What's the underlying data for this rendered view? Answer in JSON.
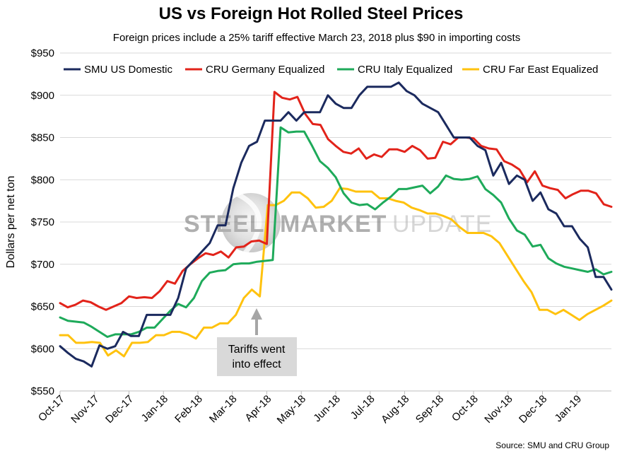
{
  "chart_data": {
    "type": "line",
    "title": "US vs Foreign Hot Rolled Steel Prices",
    "subtitle": "Foreign prices include a 25% tariff effective March 23, 2018 plus $90 in importing costs",
    "ylabel": "Dollars per net ton",
    "xlabel": "",
    "ylim": [
      550,
      950
    ],
    "yticks": [
      550,
      600,
      650,
      700,
      750,
      800,
      850,
      900,
      950
    ],
    "ytick_labels": [
      "$550",
      "$600",
      "$650",
      "$700",
      "$750",
      "$800",
      "$850",
      "$900",
      "$950"
    ],
    "grid": "horizontal",
    "legend_position": "top",
    "x_start": "Oct-17",
    "x_end": "Feb-19",
    "x_month_labels": [
      "Oct-17",
      "Nov-17",
      "Dec-17",
      "Jan-18",
      "Feb-18",
      "Mar-18",
      "Apr-18",
      "May-18",
      "Jun-18",
      "Jul-18",
      "Aug-18",
      "Sep-18",
      "Oct-18",
      "Nov-18",
      "Dec-18",
      "Jan-19"
    ],
    "series": [
      {
        "name": "SMU US Domestic",
        "color": "#1b2a5e",
        "values": [
          603,
          595,
          588,
          585,
          579,
          604,
          600,
          603,
          620,
          615,
          615,
          640,
          640,
          640,
          640,
          660,
          695,
          705,
          715,
          725,
          746,
          746,
          790,
          820,
          840,
          845,
          870,
          870,
          870,
          880,
          870,
          880,
          880,
          880,
          900,
          890,
          885,
          885,
          900,
          910,
          910,
          910,
          910,
          915,
          905,
          900,
          890,
          885,
          880,
          865,
          850,
          850,
          850,
          840,
          835,
          805,
          820,
          795,
          805,
          800,
          775,
          785,
          765,
          760,
          745,
          745,
          730,
          720,
          685,
          685,
          670
        ]
      },
      {
        "name": "CRU Germany Equalized",
        "color": "#e2231a",
        "values": [
          654,
          649,
          652,
          657,
          655,
          650,
          646,
          650,
          654,
          662,
          660,
          661,
          660,
          668,
          680,
          677,
          692,
          700,
          707,
          713,
          711,
          715,
          708,
          720,
          721,
          727,
          728,
          724,
          904,
          897,
          895,
          898,
          878,
          866,
          865,
          848,
          840,
          833,
          831,
          837,
          825,
          830,
          827,
          836,
          836,
          833,
          840,
          835,
          825,
          826,
          845,
          842,
          850,
          850,
          849,
          840,
          837,
          836,
          822,
          818,
          812,
          797,
          810,
          793,
          790,
          788,
          778,
          783,
          787,
          787,
          784,
          771,
          768
        ]
      },
      {
        "name": "CRU Italy Equalized",
        "color": "#1eaa5a",
        "values": [
          637,
          633,
          632,
          631,
          626,
          620,
          614,
          617,
          617,
          617,
          620,
          625,
          625,
          635,
          645,
          653,
          649,
          660,
          680,
          690,
          692,
          693,
          700,
          701,
          701,
          703,
          704,
          705,
          862,
          856,
          857,
          857,
          840,
          822,
          814,
          803,
          784,
          773,
          770,
          771,
          765,
          773,
          780,
          789,
          789,
          791,
          793,
          784,
          792,
          805,
          801,
          800,
          801,
          804,
          789,
          782,
          773,
          754,
          740,
          735,
          721,
          723,
          707,
          701,
          697,
          695,
          693,
          691,
          694,
          688,
          691
        ]
      },
      {
        "name": "CRU Far East Equalized",
        "color": "#ffc20e",
        "values": [
          616,
          616,
          607,
          607,
          608,
          607,
          592,
          598,
          591,
          607,
          607,
          608,
          616,
          616,
          620,
          620,
          617,
          612,
          625,
          625,
          630,
          630,
          640,
          660,
          670,
          662,
          770,
          770,
          775,
          785,
          785,
          778,
          767,
          768,
          775,
          790,
          789,
          786,
          786,
          786,
          778,
          778,
          775,
          773,
          767,
          764,
          760,
          760,
          757,
          753,
          744,
          737,
          737,
          737,
          733,
          725,
          710,
          695,
          680,
          667,
          646,
          646,
          641,
          646,
          640,
          634,
          641,
          646,
          651,
          657
        ]
      }
    ],
    "annotation": {
      "text_line1": "Tariffs went",
      "text_line2": "into effect",
      "date": "Mar 23, 2018"
    },
    "watermark": {
      "word1": "STEEL",
      "word2": "MARKET",
      "word3": "UPDATE"
    },
    "source": "Source: SMU and CRU Group"
  }
}
